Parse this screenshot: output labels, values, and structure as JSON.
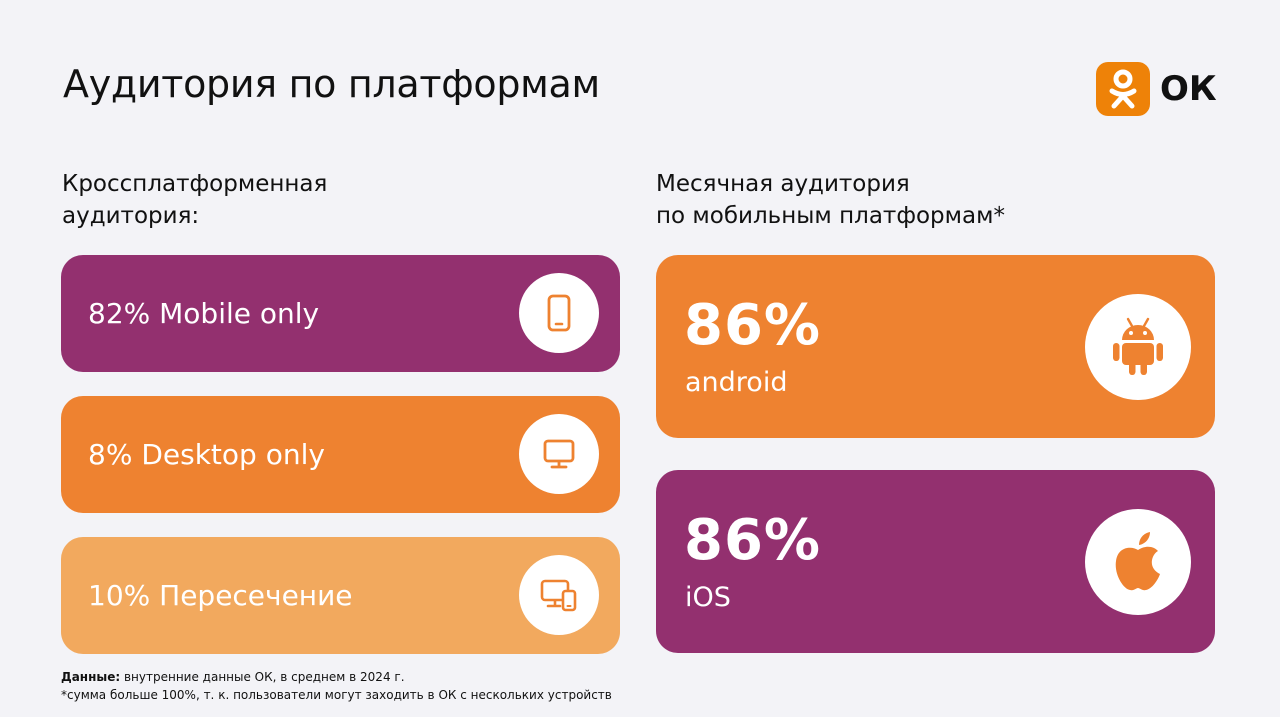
{
  "title": "Аудитория по платформам",
  "logo": {
    "text": "ОК",
    "brand_color": "#ee8208"
  },
  "left": {
    "heading_line1": "Кроссплатформенная",
    "heading_line2": "аудитория:",
    "items": [
      {
        "label": "82% Mobile only",
        "icon": "phone-icon",
        "color": "#93306f"
      },
      {
        "label": "8% Desktop only",
        "icon": "monitor-icon",
        "color": "#ee8230"
      },
      {
        "label": "10% Пересечение",
        "icon": "devices-icon",
        "color": "#f2a95e"
      }
    ]
  },
  "right": {
    "heading_line1": "Месячная аудитория",
    "heading_line2": "по мобильным платформам*",
    "items": [
      {
        "percent": "86%",
        "platform": "android",
        "icon": "android-icon",
        "color": "#ee8230"
      },
      {
        "percent": "86%",
        "platform": "iOS",
        "icon": "apple-icon",
        "color": "#93306f"
      }
    ]
  },
  "footnote": {
    "source_label": "Данные:",
    "source_text": " внутренние данные ОК, в среднем в 2024 г.",
    "note": "*сумма больше 100%, т. к. пользователи могут заходить в ОК с нескольких устройств"
  }
}
